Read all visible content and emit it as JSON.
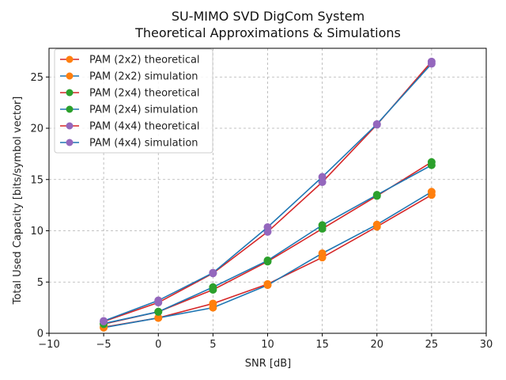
{
  "chart_data": {
    "type": "line",
    "title_line1": "SU-MIMO SVD DigCom System",
    "title_line2": "Theoretical Approximations & Simulations",
    "xlabel": "SNR [dB]",
    "ylabel": "Total Used Capacity [bits/symbol vector]",
    "xlim": [
      -10,
      30
    ],
    "ylim": [
      0,
      27.8
    ],
    "xticks": [
      -10,
      -5,
      0,
      5,
      10,
      15,
      20,
      25,
      30
    ],
    "yticks": [
      0,
      5,
      10,
      15,
      20,
      25
    ],
    "grid": true,
    "legend_position": "top-left",
    "x": [
      -5,
      0,
      5,
      10,
      15,
      20,
      25
    ],
    "series": [
      {
        "name": "PAM (2x2) theoretical",
        "line_color": "#d62728",
        "marker_color": "#ff7f0e",
        "values": [
          0.6,
          1.5,
          2.9,
          4.8,
          7.4,
          10.4,
          13.5
        ]
      },
      {
        "name": "PAM (2x2) simulation",
        "line_color": "#1f77b4",
        "marker_color": "#ff7f0e",
        "values": [
          0.55,
          1.5,
          2.5,
          4.7,
          7.8,
          10.6,
          13.8
        ]
      },
      {
        "name": "PAM (2x4) theoretical",
        "line_color": "#d62728",
        "marker_color": "#2ca02c",
        "values": [
          0.9,
          2.1,
          4.25,
          7.0,
          10.2,
          13.4,
          16.7
        ]
      },
      {
        "name": "PAM (2x4) simulation",
        "line_color": "#1f77b4",
        "marker_color": "#2ca02c",
        "values": [
          0.95,
          2.1,
          4.5,
          7.1,
          10.55,
          13.5,
          16.4
        ]
      },
      {
        "name": "PAM (4x4) theoretical",
        "line_color": "#d62728",
        "marker_color": "#9467bd",
        "values": [
          1.15,
          3.0,
          5.85,
          9.9,
          14.75,
          20.35,
          26.5
        ]
      },
      {
        "name": "PAM (4x4) simulation",
        "line_color": "#1f77b4",
        "marker_color": "#9467bd",
        "values": [
          1.2,
          3.2,
          5.9,
          10.35,
          15.25,
          20.4,
          26.3
        ]
      }
    ]
  }
}
